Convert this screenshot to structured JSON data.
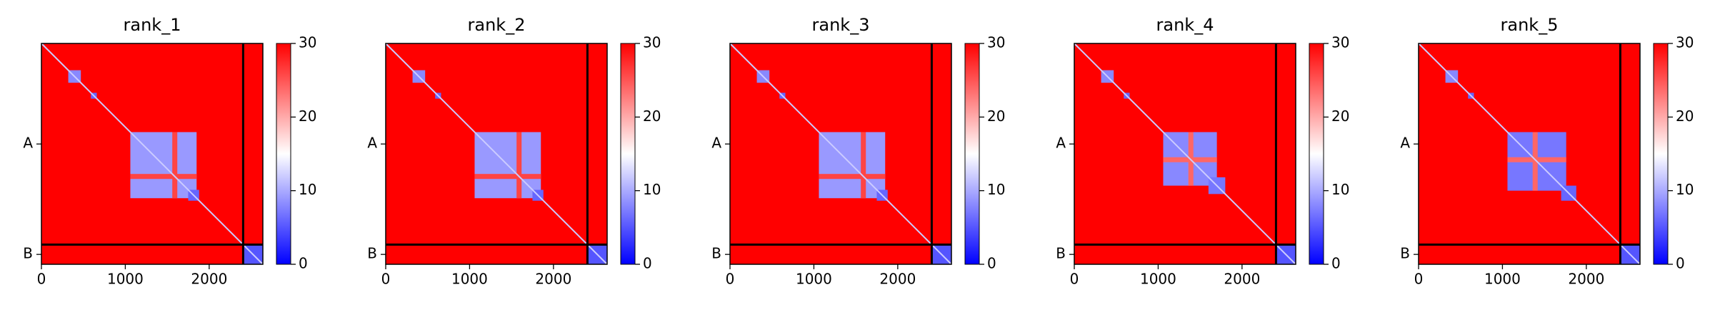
{
  "chart_data": [
    {
      "type": "heatmap",
      "title": "rank_1",
      "xlim": [
        0,
        2640
      ],
      "ylim": [
        2640,
        0
      ],
      "xticks": [
        0,
        1000,
        2000
      ],
      "yticks": [
        {
          "value": 1202,
          "label": "A"
        },
        {
          "value": 2522,
          "label": "B"
        }
      ],
      "clim": [
        0,
        30
      ],
      "cticks": [
        0,
        10,
        20,
        30
      ],
      "cmap": [
        "#0000ff",
        "#ffffff",
        "#ff0000"
      ],
      "background": 30,
      "diagonal": 12,
      "boundaries": [
        2405
      ],
      "regions": [
        [
          320,
          470,
          320,
          470,
          8
        ],
        [
          590,
          660,
          590,
          660,
          6
        ],
        [
          1060,
          1850,
          1060,
          1850,
          9
        ],
        [
          1060,
          1850,
          1560,
          1620,
          26
        ],
        [
          1560,
          1620,
          1060,
          1850,
          26
        ],
        [
          1750,
          1880,
          1750,
          1880,
          6
        ],
        [
          2405,
          2640,
          2405,
          2640,
          5
        ]
      ]
    },
    {
      "type": "heatmap",
      "title": "rank_2",
      "xlim": [
        0,
        2640
      ],
      "ylim": [
        2640,
        0
      ],
      "xticks": [
        0,
        1000,
        2000
      ],
      "yticks": [
        {
          "value": 1202,
          "label": "A"
        },
        {
          "value": 2522,
          "label": "B"
        }
      ],
      "clim": [
        0,
        30
      ],
      "cticks": [
        0,
        10,
        20,
        30
      ],
      "cmap": [
        "#0000ff",
        "#ffffff",
        "#ff0000"
      ],
      "background": 30,
      "diagonal": 12,
      "boundaries": [
        2405
      ],
      "regions": [
        [
          320,
          470,
          320,
          470,
          8
        ],
        [
          590,
          660,
          590,
          660,
          6
        ],
        [
          1060,
          1850,
          1060,
          1850,
          9
        ],
        [
          1060,
          1850,
          1560,
          1620,
          26
        ],
        [
          1560,
          1620,
          1060,
          1850,
          26
        ],
        [
          1750,
          1880,
          1750,
          1880,
          6
        ],
        [
          2405,
          2640,
          2405,
          2640,
          5
        ]
      ]
    },
    {
      "type": "heatmap",
      "title": "rank_3",
      "xlim": [
        0,
        2640
      ],
      "ylim": [
        2640,
        0
      ],
      "xticks": [
        0,
        1000,
        2000
      ],
      "yticks": [
        {
          "value": 1202,
          "label": "A"
        },
        {
          "value": 2522,
          "label": "B"
        }
      ],
      "clim": [
        0,
        30
      ],
      "cticks": [
        0,
        10,
        20,
        30
      ],
      "cmap": [
        "#0000ff",
        "#ffffff",
        "#ff0000"
      ],
      "background": 30,
      "diagonal": 12,
      "boundaries": [
        2405
      ],
      "regions": [
        [
          320,
          470,
          320,
          470,
          8
        ],
        [
          590,
          660,
          590,
          660,
          6
        ],
        [
          1060,
          1850,
          1060,
          1850,
          9
        ],
        [
          1060,
          1850,
          1560,
          1620,
          26
        ],
        [
          1560,
          1620,
          1060,
          1850,
          26
        ],
        [
          1750,
          1880,
          1750,
          1880,
          6
        ],
        [
          2405,
          2640,
          2405,
          2640,
          5
        ]
      ]
    },
    {
      "type": "heatmap",
      "title": "rank_4",
      "xlim": [
        0,
        2640
      ],
      "ylim": [
        2640,
        0
      ],
      "xticks": [
        0,
        1000,
        2000
      ],
      "yticks": [
        {
          "value": 1202,
          "label": "A"
        },
        {
          "value": 2522,
          "label": "B"
        }
      ],
      "clim": [
        0,
        30
      ],
      "cticks": [
        0,
        10,
        20,
        30
      ],
      "cmap": [
        "#0000ff",
        "#ffffff",
        "#ff0000"
      ],
      "background": 30,
      "diagonal": 12,
      "boundaries": [
        2405
      ],
      "regions": [
        [
          320,
          470,
          320,
          470,
          8
        ],
        [
          590,
          660,
          590,
          660,
          6
        ],
        [
          1060,
          1700,
          1060,
          1700,
          8
        ],
        [
          1060,
          1700,
          1360,
          1420,
          24
        ],
        [
          1360,
          1420,
          1060,
          1700,
          24
        ],
        [
          1600,
          1800,
          1600,
          1800,
          7
        ],
        [
          2405,
          2640,
          2405,
          2640,
          5
        ]
      ]
    },
    {
      "type": "heatmap",
      "title": "rank_5",
      "xlim": [
        0,
        2640
      ],
      "ylim": [
        2640,
        0
      ],
      "xticks": [
        0,
        1000,
        2000
      ],
      "yticks": [
        {
          "value": 1202,
          "label": "A"
        },
        {
          "value": 2522,
          "label": "B"
        }
      ],
      "clim": [
        0,
        30
      ],
      "cticks": [
        0,
        10,
        20,
        30
      ],
      "cmap": [
        "#0000ff",
        "#ffffff",
        "#ff0000"
      ],
      "background": 30,
      "diagonal": 12,
      "boundaries": [
        2405
      ],
      "regions": [
        [
          320,
          470,
          320,
          470,
          8
        ],
        [
          590,
          660,
          590,
          660,
          6
        ],
        [
          1060,
          1760,
          1060,
          1760,
          7
        ],
        [
          1060,
          1760,
          1360,
          1420,
          24
        ],
        [
          1360,
          1420,
          1060,
          1760,
          24
        ],
        [
          1700,
          1880,
          1700,
          1880,
          6
        ],
        [
          2405,
          2640,
          2405,
          2640,
          5
        ]
      ]
    }
  ]
}
